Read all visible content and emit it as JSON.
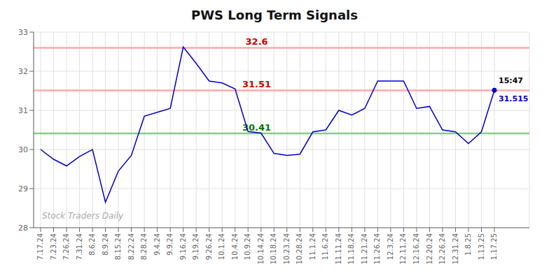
{
  "chart_data": {
    "type": "line",
    "title": "PWS Long Term Signals",
    "categories": [
      "7.17.24",
      "7.23.24",
      "7.26.24",
      "7.31.24",
      "8.6.24",
      "8.9.24",
      "8.15.24",
      "8.22.24",
      "8.28.24",
      "9.4.24",
      "9.9.24",
      "9.16.24",
      "9.19.24",
      "9.26.24",
      "10.1.24",
      "10.4.24",
      "10.9.24",
      "10.14.24",
      "10.18.24",
      "10.23.24",
      "10.28.24",
      "11.1.24",
      "11.6.24",
      "11.11.24",
      "11.18.24",
      "11.21.24",
      "11.26.24",
      "12.3.24",
      "12.11.24",
      "12.16.24",
      "12.20.24",
      "12.26.24",
      "12.31.24",
      "1.8.25",
      "1.13.25",
      "1.17.25"
    ],
    "values": [
      30.0,
      29.75,
      29.58,
      29.82,
      30.0,
      28.65,
      29.45,
      29.85,
      30.85,
      30.95,
      31.05,
      32.62,
      32.2,
      31.75,
      31.7,
      31.55,
      30.46,
      30.42,
      29.9,
      29.85,
      29.88,
      30.45,
      30.5,
      31.0,
      30.88,
      31.05,
      31.75,
      31.75,
      31.75,
      31.05,
      31.1,
      30.5,
      30.45,
      30.15,
      30.45,
      31.515
    ],
    "color": "#0000cc",
    "ylim": [
      28,
      33
    ],
    "yticks": [
      28,
      29,
      30,
      31,
      32,
      33
    ],
    "grid": true,
    "reference_lines": [
      {
        "value": 32.6,
        "label": "32.6",
        "color": "#ffaaaa",
        "label_color": "#cc0000"
      },
      {
        "value": 31.51,
        "label": "31.51",
        "color": "#ffaaaa",
        "label_color": "#cc0000"
      },
      {
        "value": 30.41,
        "label": "30.41",
        "color": "#88cc88",
        "label_color": "#007700"
      }
    ],
    "annotations": [
      {
        "x": "1.17.25",
        "y": 31.515,
        "text": "15:47",
        "position": "above"
      },
      {
        "x": "1.17.25",
        "y": 31.515,
        "text": "31.515",
        "color": "#0000cc",
        "position": "below"
      },
      {
        "text": "Stock Traders Daily"
      }
    ]
  }
}
